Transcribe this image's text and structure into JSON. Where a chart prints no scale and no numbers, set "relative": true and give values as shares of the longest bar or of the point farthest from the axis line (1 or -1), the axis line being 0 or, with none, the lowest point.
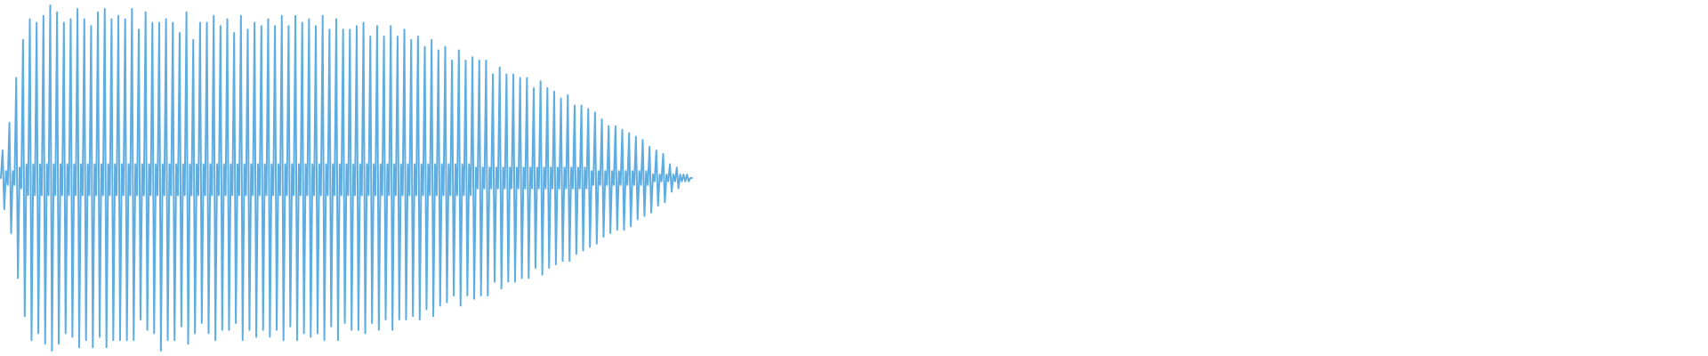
{
  "chart_data": {
    "type": "line",
    "relative": true,
    "color": "#5dade2",
    "categories": [
      null,
      null,
      null,
      null,
      null,
      null,
      null,
      null,
      null,
      null,
      null,
      null,
      null,
      null,
      null,
      null,
      null,
      null,
      null,
      null,
      null,
      null,
      null,
      null,
      null,
      null,
      null,
      null,
      null,
      null,
      null,
      null,
      null,
      null,
      null,
      null,
      null,
      null,
      null,
      null,
      null,
      null,
      null,
      null,
      null,
      null,
      null,
      null,
      null,
      null,
      null,
      null,
      null,
      null,
      null,
      null,
      null,
      null,
      null,
      null,
      null,
      null,
      null,
      null,
      null,
      null,
      null,
      null,
      null,
      null,
      null,
      null,
      null,
      null,
      null,
      null,
      null,
      null,
      null,
      null,
      null,
      null,
      null,
      null,
      null,
      null,
      null,
      null,
      null,
      null,
      null,
      null,
      null,
      null,
      null,
      null,
      null,
      null,
      null,
      null,
      null,
      null,
      null,
      null,
      null,
      null,
      null,
      null,
      null,
      null,
      null,
      null,
      null,
      null,
      null,
      null,
      null,
      null,
      null,
      null,
      null,
      null,
      null,
      null,
      null,
      null,
      null,
      null,
      null,
      null,
      null,
      null,
      null,
      null,
      null,
      null,
      null,
      null,
      null,
      null,
      null,
      null,
      null,
      null,
      null,
      null,
      null,
      null,
      null,
      null,
      null,
      null,
      null,
      null,
      null,
      null,
      null,
      null,
      null,
      null,
      null,
      null,
      null,
      null,
      null,
      null,
      null,
      null,
      null,
      null,
      null,
      null,
      null,
      null,
      null,
      null,
      null,
      null,
      null,
      null,
      null,
      null,
      null,
      null,
      null,
      null,
      null,
      null,
      null,
      null,
      null,
      null,
      null,
      null,
      null,
      null,
      null,
      null,
      null,
      null,
      null,
      null,
      null,
      null,
      null,
      null,
      null,
      null,
      null,
      null,
      null,
      null,
      null,
      null,
      null,
      null,
      null,
      null,
      null,
      null,
      null,
      null,
      null,
      null,
      null,
      null,
      null,
      null,
      null,
      null,
      null,
      null,
      null,
      null,
      null,
      null,
      null,
      null,
      null,
      null,
      null,
      null,
      null,
      null,
      null,
      null,
      null,
      null,
      null,
      null,
      null,
      null,
      null,
      null,
      null,
      null,
      null,
      null,
      null,
      null,
      null,
      null,
      null,
      null,
      null,
      null,
      null,
      null,
      null,
      null,
      null,
      null,
      null,
      null,
      null,
      null,
      null,
      null,
      null,
      null,
      null,
      null,
      null,
      null,
      null,
      null,
      null,
      null,
      null,
      null,
      null,
      null,
      null,
      null,
      null,
      null,
      null,
      null,
      null,
      null,
      null,
      null,
      null,
      null,
      null,
      null,
      null,
      null,
      null,
      null,
      null,
      null,
      null,
      null,
      null,
      null,
      null,
      null,
      null,
      null,
      null,
      null,
      null,
      null,
      null,
      null,
      null,
      null,
      null,
      null,
      null,
      null,
      null,
      null,
      null,
      null,
      null,
      null,
      null,
      null,
      null,
      null,
      null,
      null,
      null,
      null,
      null,
      null,
      null,
      null,
      null,
      null,
      null,
      null,
      null,
      null,
      null,
      null,
      null,
      null,
      null,
      null,
      null,
      null,
      null,
      null,
      null,
      null,
      null,
      null,
      null,
      null,
      null,
      null,
      null,
      null,
      null,
      null,
      null,
      null,
      null,
      null,
      null,
      null,
      null,
      null,
      null,
      null,
      null,
      null,
      null,
      null,
      null,
      null,
      null,
      null,
      null,
      null,
      null,
      null,
      null,
      null,
      null,
      null,
      null,
      null,
      null
    ],
    "values": [
      0.5,
      0.58,
      0.41,
      0.52,
      0.48,
      0.66,
      0.34,
      0.52,
      0.48,
      0.79,
      0.21,
      0.53,
      0.47,
      0.9,
      0.1,
      0.54,
      0.45,
      0.96,
      0.03,
      0.54,
      0.45,
      0.95,
      0.05,
      0.54,
      0.45,
      0.97,
      0.02,
      0.54,
      0.45,
      1,
      0,
      0.54,
      0.45,
      0.98,
      0.02,
      0.54,
      0.45,
      0.95,
      0.05,
      0.54,
      0.45,
      0.96,
      0.04,
      0.54,
      0.45,
      0.99,
      0.01,
      0.54,
      0.45,
      0.96,
      0.03,
      0.54,
      0.45,
      0.94,
      0.01,
      0.54,
      0.45,
      0.98,
      0.04,
      0.54,
      0.45,
      0.99,
      0.01,
      0.54,
      0.45,
      0.96,
      0.03,
      0.54,
      0.45,
      0.97,
      0.03,
      0.54,
      0.45,
      0.96,
      0.03,
      0.54,
      0.45,
      0.99,
      0.03,
      0.54,
      0.45,
      0.93,
      0.09,
      0.54,
      0.45,
      0.98,
      0.06,
      0.54,
      0.45,
      0.95,
      0.05,
      0.54,
      0.45,
      0.95,
      0,
      0.54,
      0.45,
      0.96,
      0.03,
      0.54,
      0.45,
      0.95,
      0.03,
      0.54,
      0.45,
      0.92,
      0.07,
      0.54,
      0.45,
      0.98,
      0.02,
      0.54,
      0.45,
      0.9,
      0.05,
      0.54,
      0.45,
      0.95,
      0.08,
      0.54,
      0.45,
      0.95,
      0.05,
      0.54,
      0.45,
      0.97,
      0.03,
      0.54,
      0.45,
      0.94,
      0.06,
      0.54,
      0.45,
      0.96,
      0.06,
      0.54,
      0.45,
      0.92,
      0.08,
      0.54,
      0.45,
      0.97,
      0.03,
      0.54,
      0.45,
      0.93,
      0.06,
      0.54,
      0.45,
      0.95,
      0.04,
      0.54,
      0.45,
      0.94,
      0.06,
      0.54,
      0.45,
      0.96,
      0.04,
      0.54,
      0.45,
      0.94,
      0.06,
      0.54,
      0.45,
      0.97,
      0.03,
      0.54,
      0.45,
      0.94,
      0.07,
      0.54,
      0.45,
      0.97,
      0.03,
      0.54,
      0.45,
      0.95,
      0.05,
      0.54,
      0.45,
      0.96,
      0.04,
      0.54,
      0.45,
      0.94,
      0.05,
      0.54,
      0.45,
      0.97,
      0.03,
      0.54,
      0.45,
      0.93,
      0.07,
      0.54,
      0.45,
      0.96,
      0.03,
      0.54,
      0.45,
      0.93,
      0.08,
      0.54,
      0.45,
      0.93,
      0.06,
      0.54,
      0.45,
      0.94,
      0.06,
      0.54,
      0.45,
      0.95,
      0.05,
      0.54,
      0.45,
      0.91,
      0.08,
      0.54,
      0.45,
      0.94,
      0.06,
      0.54,
      0.45,
      0.91,
      0.09,
      0.54,
      0.45,
      0.94,
      0.06,
      0.54,
      0.45,
      0.91,
      0.09,
      0.54,
      0.45,
      0.93,
      0.09,
      0.54,
      0.45,
      0.9,
      0.1,
      0.54,
      0.45,
      0.91,
      0.09,
      0.54,
      0.45,
      0.88,
      0.12,
      0.54,
      0.45,
      0.9,
      0.1,
      0.54,
      0.45,
      0.87,
      0.13,
      0.54,
      0.45,
      0.88,
      0.14,
      0.54,
      0.45,
      0.84,
      0.16,
      0.54,
      0.45,
      0.87,
      0.13,
      0.54,
      0.45,
      0.84,
      0.16,
      0.54,
      0.45,
      0.85,
      0.15,
      0.53,
      0.47,
      0.84,
      0.16,
      0.53,
      0.47,
      0.84,
      0.16,
      0.53,
      0.47,
      0.8,
      0.2,
      0.53,
      0.47,
      0.82,
      0.18,
      0.53,
      0.47,
      0.8,
      0.2,
      0.53,
      0.47,
      0.8,
      0.2,
      0.53,
      0.47,
      0.79,
      0.21,
      0.53,
      0.47,
      0.79,
      0.21,
      0.53,
      0.47,
      0.76,
      0.24,
      0.53,
      0.47,
      0.78,
      0.22,
      0.53,
      0.47,
      0.76,
      0.24,
      0.53,
      0.47,
      0.75,
      0.25,
      0.53,
      0.47,
      0.73,
      0.26,
      0.53,
      0.47,
      0.74,
      0.26,
      0.53,
      0.47,
      0.71,
      0.28,
      0.53,
      0.47,
      0.71,
      0.29,
      0.53,
      0.47,
      0.7,
      0.3,
      0.52,
      0.48,
      0.69,
      0.31,
      0.52,
      0.48,
      0.67,
      0.33,
      0.52,
      0.48,
      0.65,
      0.34,
      0.52,
      0.48,
      0.65,
      0.35,
      0.52,
      0.48,
      0.64,
      0.35,
      0.52,
      0.48,
      0.63,
      0.36,
      0.52,
      0.48,
      0.62,
      0.38,
      0.52,
      0.48,
      0.61,
      0.39,
      0.52,
      0.48,
      0.59,
      0.4,
      0.51,
      0.49,
      0.58,
      0.42,
      0.51,
      0.49,
      0.57,
      0.43,
      0.51,
      0.49,
      0.54,
      0.46,
      0.51,
      0.49,
      0.53,
      0.47,
      0.51,
      0.49,
      0.51,
      0.49,
      0.51,
      0.49,
      0.5,
      0.5
    ]
  }
}
